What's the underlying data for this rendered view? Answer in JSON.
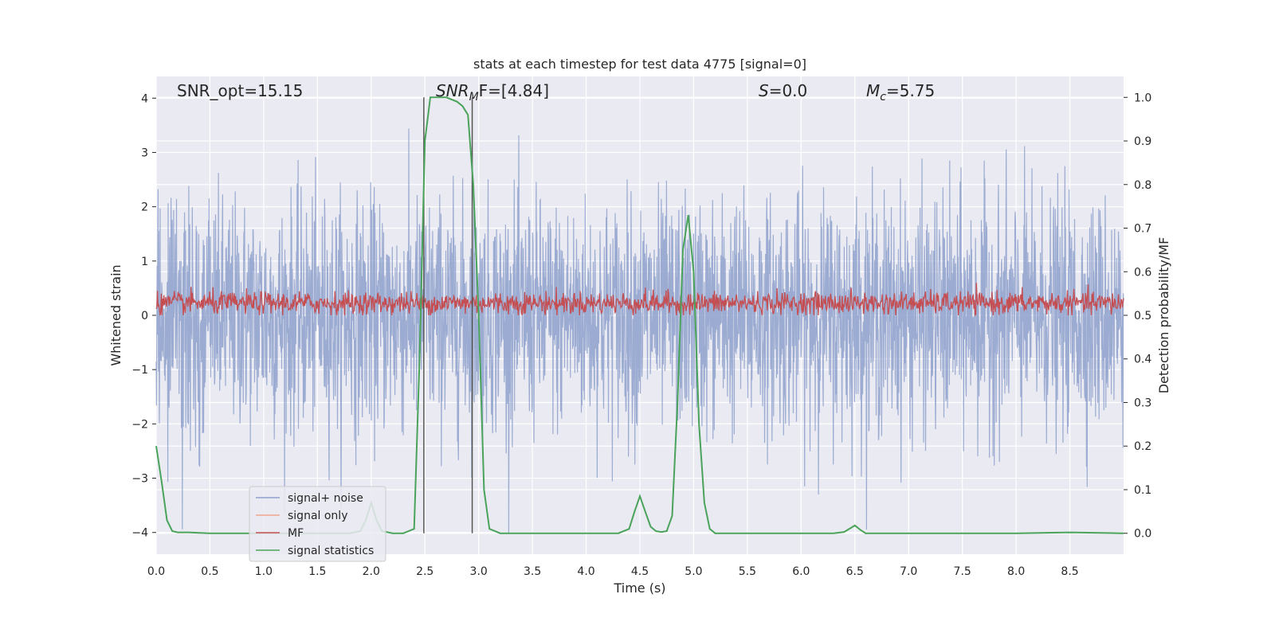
{
  "chart_data": {
    "type": "line",
    "title": "stats at each timestep for test data 4775 [signal=0]",
    "xlabel": "Time (s)",
    "ylabel": "Whitened strain",
    "y2label": "Detection probability/MF",
    "xlim": [
      0,
      9
    ],
    "ylim": [
      -4.4,
      4.4
    ],
    "y2lim": [
      -0.048,
      1.048
    ],
    "xticks": [
      "0.0",
      "0.5",
      "1.0",
      "1.5",
      "2.0",
      "2.5",
      "3.0",
      "3.5",
      "4.0",
      "4.5",
      "5.0",
      "5.5",
      "6.0",
      "6.5",
      "7.0",
      "7.5",
      "8.0",
      "8.5"
    ],
    "yticks": [
      "−4",
      "−3",
      "−2",
      "−1",
      "0",
      "1",
      "2",
      "3",
      "4"
    ],
    "y2ticks": [
      "0.0",
      "0.1",
      "0.2",
      "0.3",
      "0.4",
      "0.5",
      "0.6",
      "0.7",
      "0.8",
      "0.9",
      "1.0"
    ],
    "grid": true,
    "legend_position": "lower-left",
    "annotations": {
      "snr_opt": "SNR_opt=15.15",
      "snr_mf_base": "SNR",
      "snr_mf_sub": "M",
      "snr_mf_rest": "F=[4.84]",
      "s_var": "S",
      "s_val": "=0.0",
      "mc_var": "M",
      "mc_sub": "c",
      "mc_val": "=5.75"
    },
    "vlines": [
      2.49,
      2.94
    ],
    "series": [
      {
        "name": "signal+ noise",
        "color": "#8da0cb",
        "axis": "left",
        "approx_range": [
          -4.0,
          3.85
        ]
      },
      {
        "name": "signal only",
        "color": "#f0a58a",
        "axis": "left",
        "values": []
      },
      {
        "name": "MF",
        "color": "#c44e52",
        "axis": "right",
        "approx_range": [
          0.5,
          0.6
        ]
      },
      {
        "name": "signal statistics",
        "color": "#4aa35a",
        "axis": "right",
        "x": [
          0.0,
          0.05,
          0.1,
          0.15,
          0.2,
          0.3,
          0.4,
          0.5,
          1.0,
          1.5,
          1.8,
          1.9,
          1.95,
          2.0,
          2.05,
          2.1,
          2.2,
          2.3,
          2.4,
          2.45,
          2.5,
          2.55,
          2.6,
          2.7,
          2.8,
          2.85,
          2.9,
          2.95,
          3.0,
          3.05,
          3.1,
          3.2,
          3.5,
          4.0,
          4.3,
          4.4,
          4.45,
          4.5,
          4.55,
          4.6,
          4.65,
          4.7,
          4.75,
          4.8,
          4.85,
          4.9,
          4.95,
          5.0,
          5.05,
          5.1,
          5.15,
          5.2,
          5.5,
          6.0,
          6.3,
          6.4,
          6.5,
          6.55,
          6.6,
          7.0,
          7.5,
          8.0,
          8.5,
          9.0
        ],
        "values": [
          0.2,
          0.12,
          0.03,
          0.005,
          0.002,
          0.002,
          0.001,
          0.0,
          0.0,
          0.0,
          0.0,
          0.005,
          0.03,
          0.07,
          0.03,
          0.005,
          0.0,
          0.0,
          0.01,
          0.4,
          0.9,
          1.0,
          1.0,
          1.0,
          0.99,
          0.98,
          0.96,
          0.8,
          0.5,
          0.1,
          0.01,
          0.0,
          0.0,
          0.0,
          0.0,
          0.01,
          0.05,
          0.085,
          0.05,
          0.015,
          0.005,
          0.003,
          0.005,
          0.04,
          0.3,
          0.65,
          0.73,
          0.6,
          0.25,
          0.07,
          0.01,
          0.0,
          0.0,
          0.0,
          0.0,
          0.003,
          0.018,
          0.008,
          0.0,
          0.0,
          0.0,
          0.0,
          0.002,
          0.0
        ]
      }
    ]
  }
}
